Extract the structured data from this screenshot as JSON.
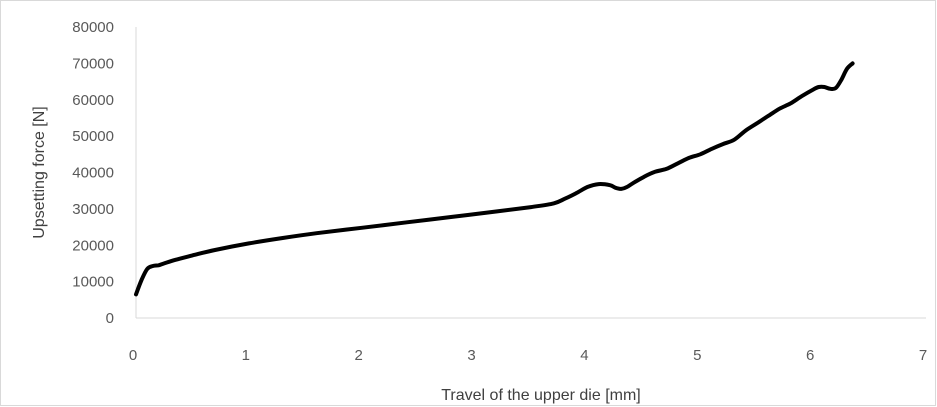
{
  "chart_data": {
    "type": "line",
    "title": "",
    "xlabel": "Travel of the upper die [mm]",
    "ylabel": "Upsetting force [N]",
    "xlim": [
      0,
      7
    ],
    "ylim": [
      0,
      80000
    ],
    "x_ticks": [
      "0",
      "1",
      "2",
      "3",
      "4",
      "5",
      "6",
      "7"
    ],
    "y_ticks": [
      "0",
      "10000",
      "20000",
      "30000",
      "40000",
      "50000",
      "60000",
      "70000",
      "80000"
    ],
    "grid": false,
    "legend": "none",
    "series": [
      {
        "color": "#000000",
        "x": [
          0,
          0.05,
          0.1,
          0.15,
          0.2,
          0.25,
          0.35,
          0.5,
          0.7,
          1.0,
          1.3,
          1.6,
          2.0,
          2.4,
          2.8,
          3.2,
          3.5,
          3.7,
          3.8,
          3.9,
          4.0,
          4.1,
          4.2,
          4.25,
          4.3,
          4.35,
          4.4,
          4.5,
          4.6,
          4.7,
          4.8,
          4.9,
          5.0,
          5.1,
          5.2,
          5.3,
          5.4,
          5.5,
          5.6,
          5.7,
          5.8,
          5.9,
          6.0,
          6.05,
          6.1,
          6.15,
          6.2,
          6.25,
          6.3,
          6.35
        ],
        "y": [
          6500,
          10500,
          13500,
          14300,
          14500,
          15000,
          16000,
          17200,
          18700,
          20500,
          22000,
          23300,
          24800,
          26300,
          27800,
          29300,
          30500,
          31500,
          32800,
          34300,
          36000,
          36800,
          36500,
          35800,
          35500,
          36000,
          37000,
          38800,
          40200,
          41000,
          42500,
          44000,
          45000,
          46500,
          47800,
          49000,
          51500,
          53500,
          55500,
          57500,
          59000,
          61000,
          62800,
          63500,
          63500,
          63000,
          63200,
          65500,
          68500,
          70000
        ]
      }
    ]
  }
}
